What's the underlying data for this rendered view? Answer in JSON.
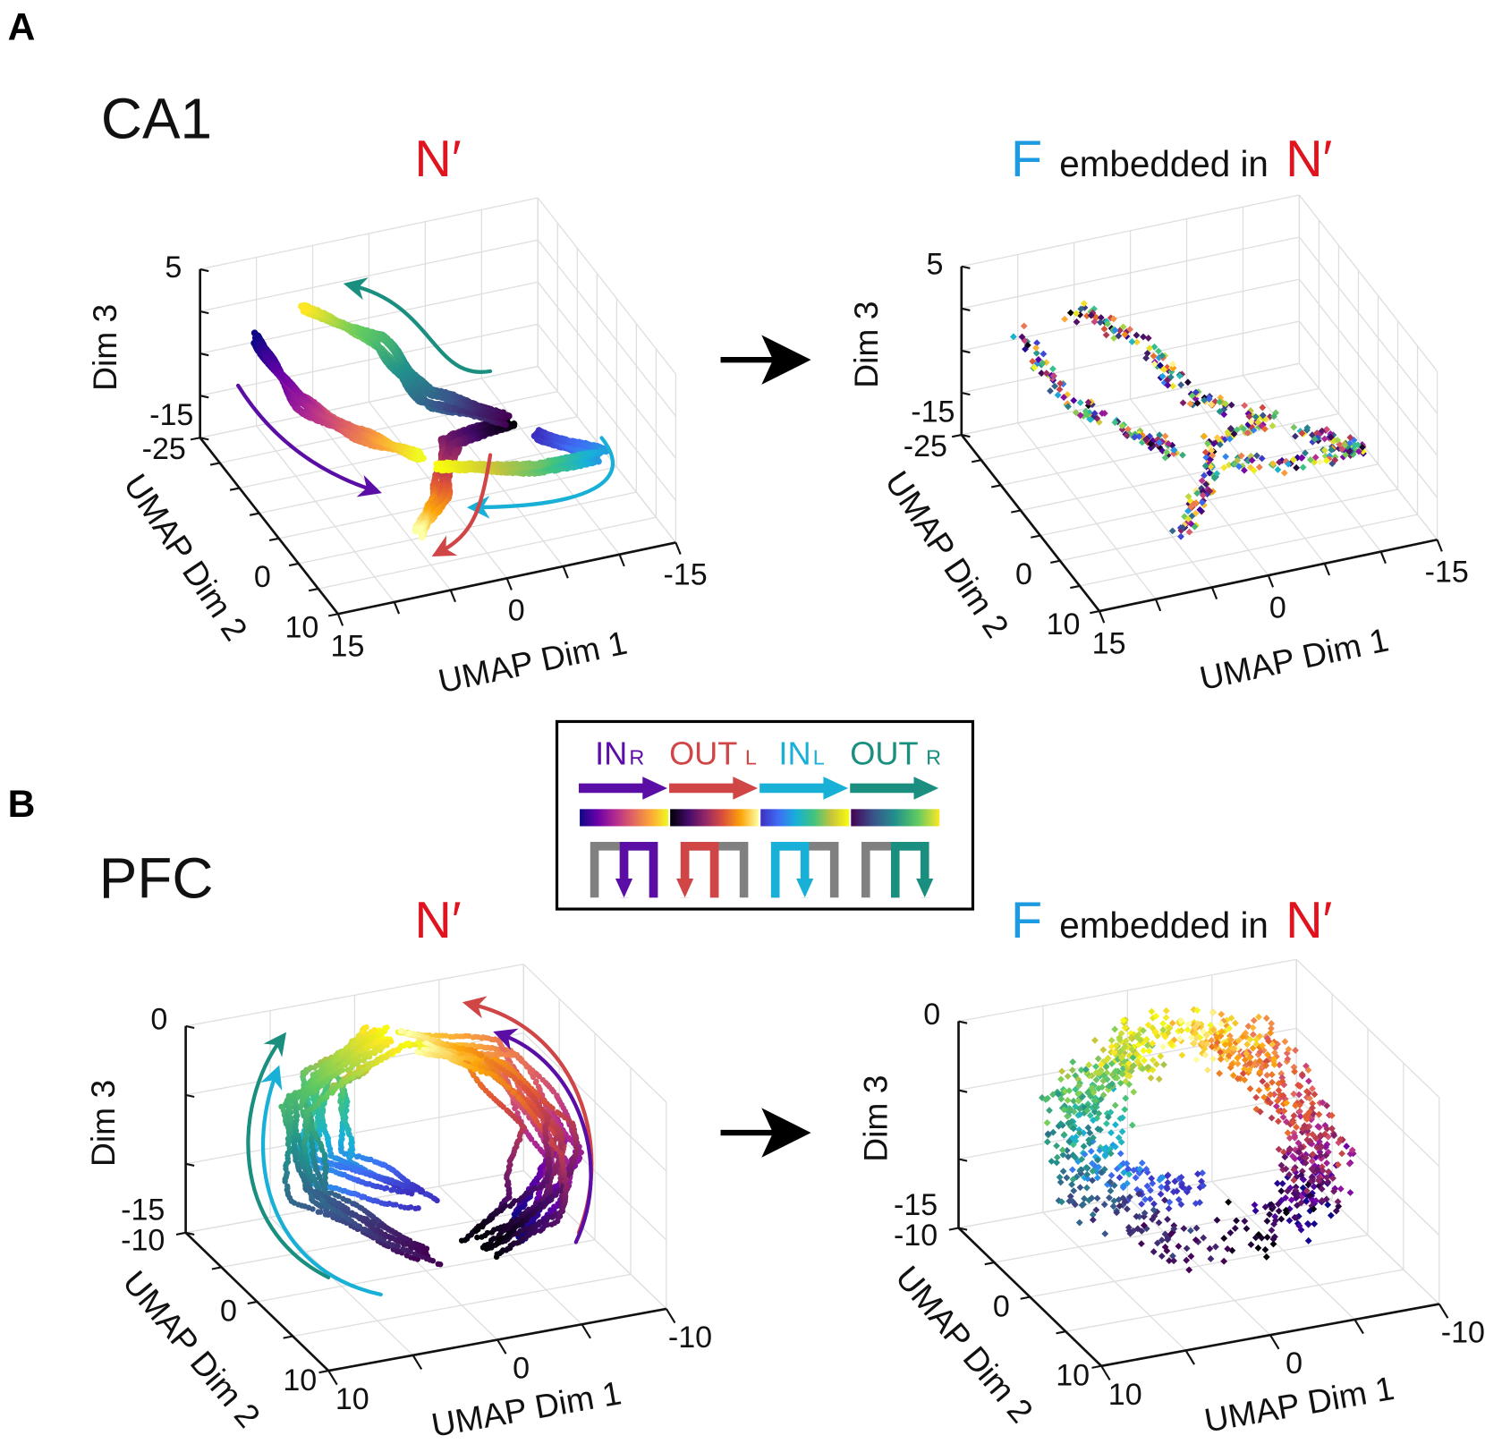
{
  "figure": {
    "panel_a_label": "A",
    "panel_b_label": "B",
    "region_a": "CA1",
    "region_b": "PFC"
  },
  "titles": {
    "n_prime": "N′",
    "f": "F",
    "embedded_in": "embedded in"
  },
  "colors": {
    "n_prime": "#e0141e",
    "f": "#1e9be0",
    "maze_gray": "#808080",
    "grid": "#dedede",
    "axis": "#111111"
  },
  "colormaps": {
    "plasma": [
      "#0d0887",
      "#6a00a8",
      "#b12a90",
      "#e16462",
      "#fca636",
      "#f0f921"
    ],
    "inferno": [
      "#000004",
      "#420a68",
      "#932667",
      "#dd513a",
      "#fca50a",
      "#fcffa4"
    ],
    "parula": [
      "#3d2fbf",
      "#3f6cf5",
      "#17b0d8",
      "#3fc37e",
      "#c7c43a",
      "#f9fb0e"
    ],
    "viridis": [
      "#440154",
      "#3b528b",
      "#21918c",
      "#5ec962",
      "#fde725"
    ]
  },
  "legend": {
    "items": [
      {
        "name": "IN",
        "sub": "R",
        "color": "#5b0ea6",
        "colormap": "plasma",
        "maze_colored_half": "right",
        "maze_arrow_leg": "middle"
      },
      {
        "name": "OUT",
        "sub": "L",
        "color": "#d04545",
        "colormap": "inferno",
        "maze_colored_half": "left",
        "maze_arrow_leg": "left"
      },
      {
        "name": "IN",
        "sub": "L",
        "color": "#18b0d6",
        "colormap": "parula",
        "maze_colored_half": "left",
        "maze_arrow_leg": "middle"
      },
      {
        "name": "OUT",
        "sub": "R",
        "color": "#1a8f7f",
        "colormap": "viridis",
        "maze_colored_half": "right",
        "maze_arrow_leg": "right"
      }
    ]
  },
  "chart_data": [
    {
      "type": "scatter3d",
      "panel": "A",
      "region": "CA1",
      "title": "N′",
      "grid": true,
      "point_coloring": "by_trajectory_progress",
      "axes": {
        "x": {
          "label": "UMAP Dim 1",
          "range": [
            -15,
            15
          ],
          "tick_labels": [
            "15",
            "0",
            "-15"
          ]
        },
        "y": {
          "label": "UMAP Dim 2",
          "range": [
            -25,
            10
          ],
          "tick_labels": [
            "-25",
            "0",
            "10"
          ]
        },
        "z": {
          "label": "Dim 3",
          "range": [
            -15,
            5
          ],
          "tick_labels": [
            "5",
            "-15"
          ]
        }
      },
      "series": [
        {
          "name": "IN R",
          "colormap": "plasma",
          "waypoints": [
            [
              11.2,
              -21.3,
              -2
            ],
            [
              9.3,
              -14.8,
              -6
            ],
            [
              4.9,
              -12.8,
              -10
            ],
            [
              1.0,
              -9.6,
              -12
            ]
          ]
        },
        {
          "name": "OUT L",
          "colormap": "inferno",
          "waypoints": [
            [
              -6.4,
              -7.7,
              -9
            ],
            [
              -1.9,
              -9.3,
              -11
            ],
            [
              0.4,
              -5.1,
              -14
            ],
            [
              4.0,
              -0.9,
              -15
            ]
          ]
        },
        {
          "name": "IN L",
          "colormap": "parula",
          "waypoints": [
            [
              -9.0,
              -7.9,
              -11
            ],
            [
              -13.6,
              -5.3,
              -13
            ],
            [
              -7.7,
              -5.3,
              -13
            ],
            [
              -0.4,
              -8.7,
              -13
            ]
          ]
        },
        {
          "name": "OUT R",
          "colormap": "viridis",
          "waypoints": [
            [
              -6.3,
              -8.6,
              -9
            ],
            [
              -0.6,
              -11.8,
              -7
            ],
            [
              1.6,
              -17.5,
              -3
            ],
            [
              6.9,
              -21.6,
              0
            ]
          ]
        }
      ]
    },
    {
      "type": "scatter3d",
      "panel": "A",
      "region": "CA1",
      "title": "F embedded in N′",
      "grid": true,
      "point_coloring": "mixed",
      "axes": {
        "x": {
          "label": "UMAP Dim 1",
          "range": [
            -15,
            15
          ],
          "tick_labels": [
            "15",
            "0",
            "-15"
          ]
        },
        "y": {
          "label": "UMAP Dim 2",
          "range": [
            -25,
            10
          ],
          "tick_labels": [
            "-25",
            "0",
            "10"
          ]
        },
        "z": {
          "label": "Dim 3",
          "range": [
            -15,
            5
          ],
          "tick_labels": [
            "5",
            "-15"
          ]
        }
      },
      "series": [
        {
          "name": "IN R",
          "colormap": "plasma",
          "waypoints": [
            [
              11.2,
              -21.3,
              -2
            ],
            [
              9.3,
              -14.8,
              -6
            ],
            [
              4.9,
              -12.8,
              -10
            ],
            [
              1.0,
              -9.6,
              -12
            ]
          ]
        },
        {
          "name": "OUT L",
          "colormap": "inferno",
          "waypoints": [
            [
              -6.4,
              -7.7,
              -9
            ],
            [
              -1.9,
              -9.3,
              -11
            ],
            [
              0.4,
              -5.1,
              -14
            ],
            [
              4.0,
              -0.9,
              -15
            ]
          ]
        },
        {
          "name": "IN L",
          "colormap": "parula",
          "waypoints": [
            [
              -9.0,
              -7.9,
              -11
            ],
            [
              -13.6,
              -5.3,
              -13
            ],
            [
              -7.7,
              -5.3,
              -13
            ],
            [
              -0.4,
              -8.7,
              -13
            ]
          ]
        },
        {
          "name": "OUT R",
          "colormap": "viridis",
          "waypoints": [
            [
              -6.3,
              -8.6,
              -9
            ],
            [
              -0.6,
              -11.8,
              -7
            ],
            [
              1.6,
              -17.5,
              -3
            ],
            [
              6.9,
              -21.6,
              0
            ]
          ]
        }
      ]
    },
    {
      "type": "scatter3d",
      "panel": "B",
      "region": "PFC",
      "title": "N′",
      "grid": true,
      "point_coloring": "by_trajectory_progress",
      "axes": {
        "x": {
          "label": "UMAP Dim 1",
          "range": [
            -10,
            10
          ],
          "tick_labels": [
            "10",
            "0",
            "-10"
          ]
        },
        "y": {
          "label": "UMAP Dim 2",
          "range": [
            -10,
            10
          ],
          "tick_labels": [
            "-10",
            "0",
            "10"
          ]
        },
        "z": {
          "label": "Dim 3",
          "range": [
            -15,
            0
          ],
          "tick_labels": [
            "0",
            "-15"
          ]
        }
      },
      "series": [
        {
          "name": "IN R",
          "colormap": "plasma",
          "waypoints": [
            [
              -3.7,
              3.5,
              -11
            ],
            [
              -7.2,
              1.3,
              -8
            ],
            [
              -6.7,
              -6.1,
              -4
            ],
            [
              -2.9,
              -9.2,
              -3
            ]
          ]
        },
        {
          "name": "OUT L",
          "colormap": "inferno",
          "waypoints": [
            [
              -1.8,
              2.7,
              -12
            ],
            [
              -5.5,
              2.1,
              -10
            ],
            [
              -7.2,
              -0.8,
              -7
            ],
            [
              -5.5,
              -5.9,
              -4
            ],
            [
              -3.1,
              -8.4,
              -3
            ]
          ]
        },
        {
          "name": "IN L",
          "colormap": "parula",
          "waypoints": [
            [
              0.2,
              -0.5,
              -10
            ],
            [
              4.2,
              -4.4,
              -9
            ],
            [
              2.6,
              -8.1,
              -5
            ],
            [
              -1.7,
              -9.1,
              -3
            ]
          ]
        },
        {
          "name": "OUT R",
          "colormap": "viridis",
          "waypoints": [
            [
              0.6,
              1.7,
              -13
            ],
            [
              4.7,
              -4.5,
              -11
            ],
            [
              4.3,
              -8.1,
              -6
            ],
            [
              -1.2,
              -9.3,
              -3
            ]
          ]
        }
      ]
    },
    {
      "type": "scatter3d",
      "panel": "B",
      "region": "PFC",
      "title": "F embedded in N′",
      "grid": true,
      "point_coloring": "by_trajectory_progress",
      "axes": {
        "x": {
          "label": "UMAP Dim 1",
          "range": [
            -10,
            10
          ],
          "tick_labels": [
            "10",
            "0",
            "-10"
          ]
        },
        "y": {
          "label": "UMAP Dim 2",
          "range": [
            -10,
            10
          ],
          "tick_labels": [
            "-10",
            "0",
            "10"
          ]
        },
        "z": {
          "label": "Dim 3",
          "range": [
            -15,
            0
          ],
          "tick_labels": [
            "0",
            "-15"
          ]
        }
      },
      "series": [
        {
          "name": "IN R",
          "colormap": "plasma",
          "waypoints": [
            [
              -3.7,
              3.5,
              -11
            ],
            [
              -7.2,
              1.3,
              -8
            ],
            [
              -6.7,
              -6.1,
              -4
            ],
            [
              -2.9,
              -9.2,
              -3
            ]
          ]
        },
        {
          "name": "OUT L",
          "colormap": "inferno",
          "waypoints": [
            [
              -1.8,
              2.7,
              -12
            ],
            [
              -5.5,
              2.1,
              -10
            ],
            [
              -7.2,
              -0.8,
              -7
            ],
            [
              -5.5,
              -5.9,
              -4
            ],
            [
              -3.1,
              -8.4,
              -3
            ]
          ]
        },
        {
          "name": "IN L",
          "colormap": "parula",
          "waypoints": [
            [
              0.2,
              -0.5,
              -10
            ],
            [
              4.2,
              -4.4,
              -9
            ],
            [
              2.6,
              -8.1,
              -5
            ],
            [
              -1.7,
              -9.1,
              -3
            ]
          ]
        },
        {
          "name": "OUT R",
          "colormap": "viridis",
          "waypoints": [
            [
              0.6,
              1.7,
              -13
            ],
            [
              4.7,
              -4.5,
              -11
            ],
            [
              4.3,
              -8.1,
              -6
            ],
            [
              -1.2,
              -9.3,
              -3
            ]
          ]
        }
      ]
    }
  ]
}
